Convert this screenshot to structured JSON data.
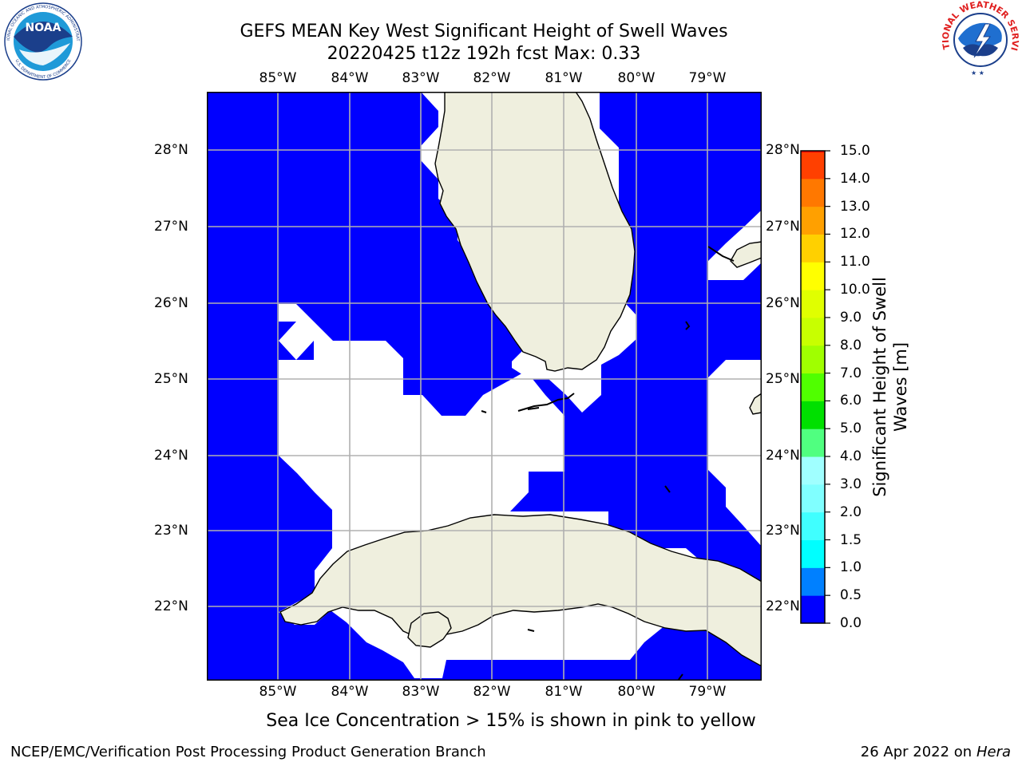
{
  "title": {
    "line1": "GEFS MEAN Key West Significant Height of Swell Waves",
    "line2": "20220425 t12z 192h fcst   Max: 0.33"
  },
  "map": {
    "lon_labels": [
      "85°W",
      "84°W",
      "83°W",
      "82°W",
      "81°W",
      "80°W",
      "79°W"
    ],
    "lat_labels": [
      "28°N",
      "27°N",
      "26°N",
      "25°N",
      "24°N",
      "23°N",
      "22°N"
    ],
    "colors": {
      "ocean": "#0000ff",
      "land": "#efefde",
      "missing": "#ffffff",
      "grid": "#b0b0b0",
      "coast": "#000000"
    }
  },
  "colorbar": {
    "title": "Significant Height of Swell Waves [m]",
    "title_line1": "Significant Height of Swell",
    "title_line2": "Waves [m]",
    "ticks": [
      "0.0",
      "0.5",
      "1.0",
      "1.5",
      "2.0",
      "3.0",
      "4.0",
      "5.0",
      "6.0",
      "7.0",
      "8.0",
      "9.0",
      "10.0",
      "11.0",
      "12.0",
      "13.0",
      "14.0",
      "15.0"
    ],
    "colors": [
      "#0000ff",
      "#0080ff",
      "#00ffff",
      "#40ffff",
      "#80ffff",
      "#a0ffff",
      "#50ff80",
      "#00e000",
      "#50ff00",
      "#a0ff00",
      "#c8ff00",
      "#e0ff00",
      "#ffff00",
      "#ffd000",
      "#ffa000",
      "#ff7800",
      "#ff4000",
      "#ff0000"
    ]
  },
  "caption": "Sea Ice Concentration > 15% is shown in pink to yellow",
  "footer": {
    "left": "NCEP/EMC/Verification Post Processing Product Generation Branch",
    "date": "26 Apr 2022 on ",
    "system": "Hera"
  },
  "logos": {
    "noaa": "NOAA",
    "noaa_ring_top": "NATIONAL OCEANIC AND ATMOSPHERIC ADMINISTRATION",
    "noaa_ring_bottom": "U.S. DEPARTMENT OF COMMERCE",
    "nws_ring": "NATIONAL WEATHER SERVICE"
  }
}
